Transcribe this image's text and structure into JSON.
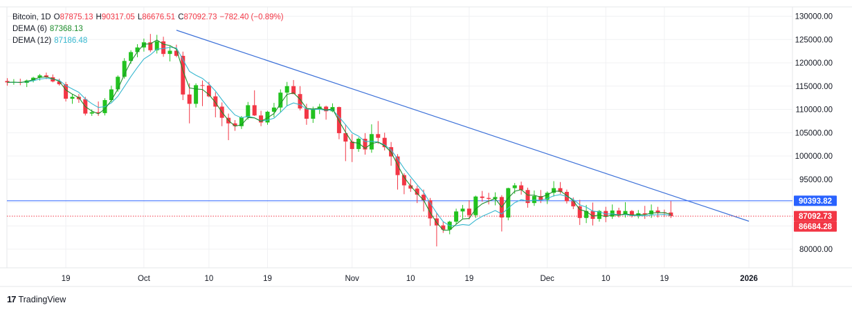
{
  "legend": {
    "symbol": "Bitcoin, 1D",
    "open_label": "O",
    "open": "87875.13",
    "high_label": "H",
    "high": "90317.05",
    "low_label": "L",
    "low": "86676.51",
    "close_label": "C",
    "close": "87092.73",
    "change": "−782.40 (−0.89%)",
    "dema6_label": "DEMA (6)",
    "dema6": "87368.13",
    "dema12_label": "DEMA (12)",
    "dema12": "87186.48"
  },
  "colors": {
    "up": "#22c21f",
    "down": "#f23645",
    "dema6": "#1c8d2b",
    "dema12": "#35b7cf",
    "trend": "#3a6fd8",
    "hline": "#2962ff",
    "grid": "#e6e7ea"
  },
  "footer": {
    "brand": "TradingView"
  },
  "chart_data": {
    "type": "candlestick",
    "ylim": [
      76000,
      132000
    ],
    "y_ticks": [
      80000,
      85000,
      90000,
      95000,
      100000,
      105000,
      110000,
      115000,
      120000,
      125000,
      130000
    ],
    "y_tick_labels": [
      "80000.00",
      "85000.00",
      "90000.00",
      "95000.00",
      "100000.00",
      "105000.00",
      "110000.00",
      "115000.00",
      "120000.00",
      "125000.00",
      "130000.00"
    ],
    "x_tick_labels": [
      {
        "label": "19",
        "index": 9
      },
      {
        "label": "Oct",
        "index": 21
      },
      {
        "label": "10",
        "index": 31
      },
      {
        "label": "19",
        "index": 40
      },
      {
        "label": "Nov",
        "index": 53
      },
      {
        "label": "10",
        "index": 62
      },
      {
        "label": "19",
        "index": 71
      },
      {
        "label": "Dec",
        "index": 83
      },
      {
        "label": "10",
        "index": 92
      },
      {
        "label": "19",
        "index": 101
      },
      {
        "label": "2026",
        "index": 114
      }
    ],
    "price_labels": [
      {
        "value": 90393.82,
        "text": "90393.82",
        "style": "hline"
      },
      {
        "value": 87092.73,
        "text": "87092.73",
        "style": "close"
      },
      {
        "value": 86684.28,
        "text": "86684.28",
        "style": "low"
      }
    ],
    "hline_value": 90393.82,
    "close_line_value": 87092.73,
    "trendline": {
      "from": {
        "index": 26,
        "value": 127000
      },
      "to": {
        "index": 114,
        "value": 86000
      }
    },
    "candles": [
      [
        116100,
        116700,
        115100,
        115800
      ],
      [
        115800,
        116500,
        115300,
        115900
      ],
      [
        115900,
        116600,
        115200,
        115700
      ],
      [
        115700,
        116400,
        114800,
        116200
      ],
      [
        116200,
        117000,
        115800,
        116800
      ],
      [
        116800,
        117600,
        116200,
        117300
      ],
      [
        117300,
        117900,
        116500,
        116900
      ],
      [
        116900,
        117500,
        115800,
        116000
      ],
      [
        116000,
        116600,
        115100,
        115400
      ],
      [
        115400,
        115900,
        111700,
        112300
      ],
      [
        112300,
        113200,
        111200,
        112700
      ],
      [
        112700,
        113300,
        111400,
        112200
      ],
      [
        112200,
        112700,
        108700,
        109100
      ],
      [
        109100,
        110000,
        108600,
        109400
      ],
      [
        109400,
        111700,
        108600,
        109200
      ],
      [
        109200,
        112400,
        108700,
        112000
      ],
      [
        112000,
        115100,
        111600,
        114300
      ],
      [
        114300,
        117300,
        113800,
        117000
      ],
      [
        117000,
        121000,
        116600,
        120400
      ],
      [
        120400,
        122700,
        119800,
        122300
      ],
      [
        122300,
        124000,
        121200,
        123300
      ],
      [
        123300,
        125200,
        122400,
        124400
      ],
      [
        124400,
        126200,
        122300,
        122700
      ],
      [
        122700,
        126000,
        122000,
        124600
      ],
      [
        124600,
        125600,
        121300,
        121900
      ],
      [
        121900,
        123600,
        120300,
        122600
      ],
      [
        122600,
        123900,
        121200,
        121500
      ],
      [
        121500,
        122400,
        112000,
        113200
      ],
      [
        113200,
        115600,
        107000,
        111200
      ],
      [
        111200,
        115600,
        110400,
        115200
      ],
      [
        115200,
        116200,
        110700,
        115100
      ],
      [
        115100,
        115900,
        112600,
        112800
      ],
      [
        112800,
        113700,
        108300,
        110600
      ],
      [
        110600,
        111500,
        106400,
        108200
      ],
      [
        108200,
        109100,
        103400,
        107000
      ],
      [
        107000,
        107700,
        105400,
        106400
      ],
      [
        106400,
        108600,
        105800,
        108300
      ],
      [
        108300,
        111600,
        107800,
        110900
      ],
      [
        110900,
        114100,
        108600,
        108700
      ],
      [
        108700,
        109700,
        106400,
        107200
      ],
      [
        107200,
        109700,
        106700,
        109500
      ],
      [
        109500,
        111400,
        108300,
        110400
      ],
      [
        110400,
        114300,
        109400,
        113600
      ],
      [
        113600,
        115900,
        110700,
        115000
      ],
      [
        115000,
        116300,
        113300,
        113300
      ],
      [
        113300,
        115000,
        109800,
        110200
      ],
      [
        110200,
        111200,
        106700,
        108000
      ],
      [
        108000,
        110600,
        107100,
        110100
      ],
      [
        110100,
        111200,
        109000,
        110600
      ],
      [
        110600,
        110800,
        107800,
        109600
      ],
      [
        109600,
        111300,
        109400,
        110500
      ],
      [
        110500,
        110600,
        103600,
        104900
      ],
      [
        104900,
        106800,
        98900,
        103100
      ],
      [
        103100,
        104700,
        98700,
        101500
      ],
      [
        101500,
        104000,
        100900,
        103700
      ],
      [
        103700,
        104900,
        100300,
        101400
      ],
      [
        101400,
        106800,
        100700,
        104700
      ],
      [
        104700,
        107500,
        102600,
        103900
      ],
      [
        103900,
        105000,
        101200,
        101900
      ],
      [
        101900,
        103000,
        97900,
        99900
      ],
      [
        99900,
        100400,
        92800,
        95900
      ],
      [
        95900,
        96300,
        91800,
        93700
      ],
      [
        93700,
        95100,
        92300,
        93000
      ],
      [
        93000,
        93600,
        89900,
        91700
      ],
      [
        91700,
        92800,
        88100,
        90500
      ],
      [
        90500,
        91000,
        85000,
        86600
      ],
      [
        86600,
        87800,
        80600,
        85100
      ],
      [
        85100,
        85900,
        83500,
        84200
      ],
      [
        84200,
        86100,
        83200,
        85900
      ],
      [
        85900,
        88700,
        85400,
        88100
      ],
      [
        88100,
        89500,
        86600,
        88700
      ],
      [
        88700,
        90500,
        86400,
        87300
      ],
      [
        87300,
        91500,
        86700,
        91300
      ],
      [
        91300,
        92500,
        90200,
        91000
      ],
      [
        91000,
        92100,
        89600,
        90800
      ],
      [
        90800,
        92200,
        89400,
        91200
      ],
      [
        91200,
        91600,
        83800,
        86800
      ],
      [
        86800,
        93200,
        86200,
        93100
      ],
      [
        93100,
        94200,
        91900,
        93700
      ],
      [
        93700,
        94500,
        91700,
        92700
      ],
      [
        92700,
        93200,
        88900,
        89900
      ],
      [
        89900,
        92600,
        89300,
        91400
      ],
      [
        91400,
        92700,
        89900,
        90600
      ],
      [
        90600,
        92400,
        89700,
        92100
      ],
      [
        92100,
        94600,
        91300,
        93100
      ],
      [
        93100,
        94400,
        91900,
        92300
      ],
      [
        92300,
        92800,
        89800,
        90300
      ],
      [
        90300,
        91100,
        88600,
        89200
      ],
      [
        89200,
        90600,
        85200,
        86700
      ],
      [
        86700,
        89500,
        85600,
        88200
      ],
      [
        88200,
        90000,
        85100,
        86500
      ],
      [
        86500,
        88400,
        85900,
        88200
      ],
      [
        88200,
        89100,
        85800,
        87000
      ],
      [
        87000,
        89600,
        86500,
        88300
      ],
      [
        88300,
        88900,
        86800,
        87400
      ],
      [
        87400,
        90100,
        86800,
        88200
      ],
      [
        88200,
        88400,
        86800,
        87200
      ],
      [
        87200,
        88400,
        86600,
        87700
      ],
      [
        87700,
        89300,
        86500,
        87500
      ],
      [
        87500,
        89600,
        86700,
        88300
      ],
      [
        88300,
        89100,
        86800,
        87900
      ],
      [
        87900,
        88500,
        86900,
        87875
      ],
      [
        87875,
        90317,
        86676,
        87092
      ]
    ]
  }
}
